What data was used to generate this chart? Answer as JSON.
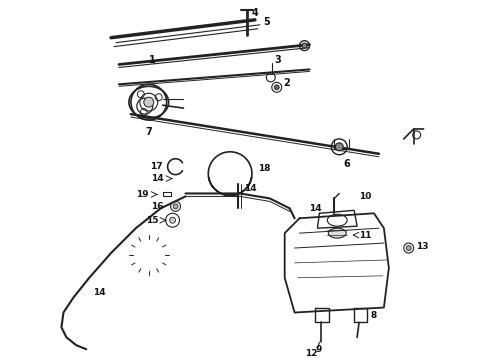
{
  "bg_color": "#ffffff",
  "line_color": "#222222",
  "text_color": "#111111",
  "fig_width": 4.9,
  "fig_height": 3.6,
  "dpi": 100,
  "font_size": 6.5
}
